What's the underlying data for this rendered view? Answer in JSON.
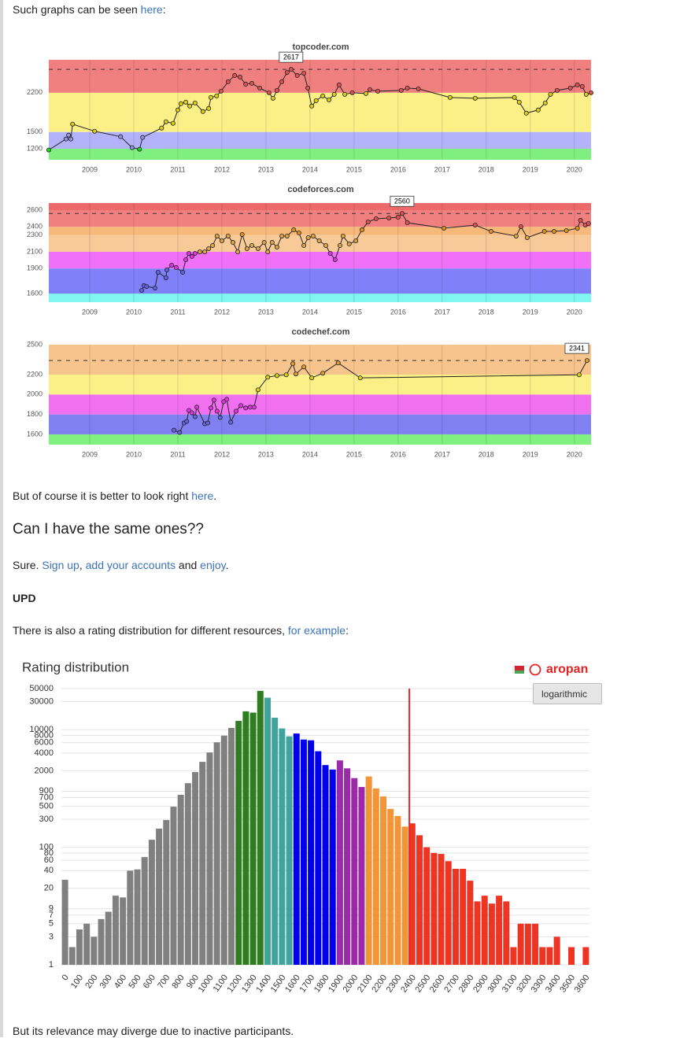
{
  "paragraphs": [
    [
      {
        "text": "Such graphs can be seen "
      },
      {
        "link": "here"
      },
      {
        "text": ":"
      }
    ],
    [
      {
        "text": "But of course it is better to look right "
      },
      {
        "link": "here"
      },
      {
        "text": "."
      }
    ],
    [
      {
        "heading": "Can I have the same ones??"
      }
    ],
    [
      {
        "text": "Sure. "
      },
      {
        "link": "Sign up"
      },
      {
        "text": ", "
      },
      {
        "link": "add your accounts"
      },
      {
        "text": " and "
      },
      {
        "link": "enjoy"
      },
      {
        "text": "."
      }
    ],
    [
      {
        "bold": "UPD"
      }
    ],
    [
      {
        "text": "There is also a rating distribution for different resources, "
      },
      {
        "link": "for example"
      },
      {
        "text": ":"
      }
    ],
    [
      {
        "text": "But its relevance may diverge due to inactive participants."
      }
    ]
  ],
  "chart_data": [
    {
      "type": "line",
      "title": "topcoder.com",
      "xlim": [
        2008.07,
        2020.38
      ],
      "xticks": [
        2009,
        2010,
        2011,
        2012,
        2013,
        2014,
        2015,
        2016,
        2017,
        2018,
        2019,
        2020
      ],
      "ylim": [
        1004,
        2788
      ],
      "yticks": [
        1200,
        1500,
        2200
      ],
      "bands": [
        {
          "to": 1200,
          "color": "#7fef7f"
        },
        {
          "from": 1200,
          "to": 1500,
          "color": "#b3b3fb"
        },
        {
          "from": 1500,
          "to": 2200,
          "color": "#fbef88"
        },
        {
          "from": 2200,
          "color": "#f08080"
        }
      ],
      "x": [
        2008.07,
        2008.46,
        2008.52,
        2008.57,
        2008.61,
        2009.11,
        2009.7,
        2009.96,
        2010.13,
        2010.2,
        2010.63,
        2010.73,
        2010.89,
        2011.0,
        2011.07,
        2011.18,
        2011.27,
        2011.39,
        2011.57,
        2011.7,
        2011.75,
        2011.88,
        2011.98,
        2012.14,
        2012.29,
        2012.41,
        2012.54,
        2012.68,
        2012.86,
        2013.07,
        2013.16,
        2013.25,
        2013.36,
        2013.48,
        2013.57,
        2013.71,
        2013.86,
        2013.95,
        2014.04,
        2014.14,
        2014.29,
        2014.43,
        2014.55,
        2014.66,
        2014.79,
        2014.96,
        2015.27,
        2015.36,
        2015.54,
        2016.07,
        2016.21,
        2016.46,
        2017.18,
        2017.75,
        2018.64,
        2018.75,
        2018.91,
        2019.18,
        2019.34,
        2019.46,
        2019.61,
        2019.91,
        2020.07,
        2020.18,
        2020.27,
        2020.38
      ],
      "values": [
        1178,
        1374,
        1444,
        1374,
        1640,
        1514,
        1416,
        1220,
        1192,
        1402,
        1570,
        1682,
        1654,
        1892,
        2004,
        2032,
        1962,
        2018,
        1864,
        1920,
        2116,
        2144,
        2228,
        2396,
        2508,
        2480,
        2354,
        2368,
        2284,
        2200,
        2102,
        2242,
        2396,
        2564,
        2617,
        2508,
        2550,
        2284,
        1962,
        2060,
        2144,
        2074,
        2172,
        2340,
        2172,
        2200,
        2186,
        2256,
        2228,
        2242,
        2284,
        2270,
        2116,
        2102,
        2116,
        2032,
        1836,
        1892,
        2018,
        2172,
        2242,
        2284,
        2340,
        2312,
        2172,
        2200
      ]
    },
    {
      "type": "line",
      "title": "codeforces.com",
      "xlim": [
        2008.07,
        2020.38
      ],
      "xticks": [
        2009,
        2010,
        2011,
        2012,
        2013,
        2014,
        2015,
        2016,
        2017,
        2018,
        2019,
        2020
      ],
      "ylim": [
        1496,
        2685
      ],
      "yticks": [
        1600,
        1900,
        2100,
        2300,
        2400,
        2600
      ],
      "bands": [
        {
          "to": 1600,
          "color": "#7ff7f0"
        },
        {
          "from": 1600,
          "to": 1900,
          "color": "#8080f8"
        },
        {
          "from": 1900,
          "to": 2100,
          "color": "#f070f8"
        },
        {
          "from": 2100,
          "to": 2300,
          "color": "#f7ca98"
        },
        {
          "from": 2300,
          "to": 2400,
          "color": "#f6b97a"
        },
        {
          "from": 2400,
          "to": 2600,
          "color": "#f08080"
        },
        {
          "from": 2600,
          "color": "#ec6a6a"
        }
      ],
      "x": [
        2010.18,
        2010.23,
        2010.29,
        2010.48,
        2010.55,
        2010.73,
        2010.75,
        2010.86,
        2010.96,
        2011.11,
        2011.18,
        2011.25,
        2011.32,
        2011.39,
        2011.5,
        2011.61,
        2011.7,
        2011.79,
        2011.89,
        2012.0,
        2012.14,
        2012.25,
        2012.36,
        2012.46,
        2012.57,
        2012.68,
        2012.82,
        2012.96,
        2013.04,
        2013.14,
        2013.25,
        2013.36,
        2013.48,
        2013.63,
        2013.75,
        2013.86,
        2013.96,
        2014.07,
        2014.21,
        2014.36,
        2014.46,
        2014.57,
        2014.68,
        2014.75,
        2014.89,
        2015.04,
        2015.18,
        2015.32,
        2015.5,
        2015.79,
        2016.0,
        2016.09,
        2016.21,
        2017.04,
        2017.75,
        2018.11,
        2018.68,
        2018.79,
        2018.93,
        2019.32,
        2019.54,
        2019.82,
        2020.07,
        2020.14,
        2020.25,
        2020.32
      ],
      "values": [
        1638,
        1695,
        1685,
        1666,
        1855,
        1789,
        1883,
        1940,
        1912,
        1855,
        2006,
        2081,
        2044,
        2081,
        2100,
        2100,
        2138,
        2176,
        2289,
        2232,
        2289,
        2213,
        2100,
        2308,
        2138,
        2176,
        2138,
        2213,
        2100,
        2213,
        2157,
        2289,
        2289,
        2364,
        2327,
        2176,
        2270,
        2289,
        2232,
        2176,
        2081,
        2006,
        2176,
        2289,
        2194,
        2232,
        2364,
        2459,
        2496,
        2506,
        2515,
        2560,
        2449,
        2383,
        2421,
        2345,
        2289,
        2402,
        2270,
        2345,
        2345,
        2355,
        2383,
        2477,
        2421,
        2440
      ]
    },
    {
      "type": "line",
      "title": "codechef.com",
      "xlim": [
        2008.07,
        2020.38
      ],
      "xticks": [
        2009,
        2010,
        2011,
        2012,
        2013,
        2014,
        2015,
        2016,
        2017,
        2018,
        2019,
        2020
      ],
      "ylim": [
        1497,
        2500
      ],
      "yticks": [
        1600,
        1800,
        2000,
        2200,
        2500
      ],
      "bands": [
        {
          "to": 1600,
          "color": "#80f080"
        },
        {
          "from": 1600,
          "to": 1800,
          "color": "#8080f0"
        },
        {
          "from": 1800,
          "to": 2000,
          "color": "#f070f0"
        },
        {
          "from": 2000,
          "to": 2200,
          "color": "#fbef88"
        },
        {
          "from": 2200,
          "color": "#f6c48c"
        }
      ],
      "x": [
        2010.91,
        2011.04,
        2011.14,
        2011.2,
        2011.25,
        2011.32,
        2011.39,
        2011.43,
        2011.61,
        2011.68,
        2011.75,
        2011.82,
        2011.89,
        2011.96,
        2012.04,
        2012.11,
        2012.2,
        2012.32,
        2012.43,
        2012.54,
        2012.64,
        2012.73,
        2012.82,
        2013.04,
        2013.25,
        2013.46,
        2013.61,
        2013.68,
        2013.86,
        2014.04,
        2014.29,
        2014.64,
        2015.14,
        2020.11,
        2020.29
      ],
      "values": [
        1642,
        1619,
        1714,
        1730,
        1841,
        1817,
        1777,
        1873,
        1706,
        1714,
        1865,
        1944,
        1833,
        1769,
        1928,
        1952,
        1722,
        1833,
        1889,
        1865,
        1873,
        1873,
        2047,
        2174,
        2190,
        2198,
        2309,
        2206,
        2277,
        2167,
        2214,
        2317,
        2167,
        2198,
        2341
      ]
    },
    {
      "type": "histogram",
      "title": "Rating distribution",
      "user": "aropan",
      "button": "logarithmic",
      "log": true,
      "grid": true,
      "bins": [
        0,
        50,
        100,
        150,
        200,
        250,
        300,
        350,
        400,
        450,
        500,
        550,
        600,
        650,
        700,
        750,
        800,
        850,
        900,
        950,
        1000,
        1050,
        1100,
        1150,
        1200,
        1250,
        1300,
        1350,
        1400,
        1450,
        1500,
        1550,
        1600,
        1650,
        1700,
        1750,
        1800,
        1850,
        1900,
        1950,
        2000,
        2050,
        2100,
        2150,
        2200,
        2250,
        2300,
        2350,
        2400,
        2450,
        2500,
        2550,
        2600,
        2650,
        2700,
        2750,
        2800,
        2850,
        2900,
        2950,
        3000,
        3050,
        3100,
        3150,
        3200,
        3250,
        3300,
        3350,
        3400,
        3450,
        3500,
        3550,
        3600,
        3650
      ],
      "values": [
        28,
        2,
        4,
        5,
        3,
        6,
        8,
        15,
        14,
        40,
        42,
        68,
        134,
        207,
        290,
        490,
        780,
        1230,
        1900,
        2840,
        4100,
        6100,
        7900,
        10700,
        14100,
        20500,
        19500,
        45700,
        35000,
        16000,
        10500,
        7700,
        8600,
        6800,
        6600,
        4300,
        2500,
        2100,
        3000,
        2200,
        1500,
        1060,
        1600,
        1000,
        730,
        450,
        340,
        225,
        255,
        160,
        100,
        80,
        77,
        58,
        43,
        43,
        27,
        12,
        15,
        11,
        15,
        12,
        2,
        5,
        5,
        5,
        2,
        2,
        3,
        null,
        2,
        null,
        2
      ],
      "bands": [
        {
          "from": 0,
          "color": "#808080"
        },
        {
          "from": 1200,
          "color": "#2e7d1e"
        },
        {
          "from": 1400,
          "color": "#40a49c"
        },
        {
          "from": 1600,
          "color": "#0000ee"
        },
        {
          "from": 1900,
          "color": "#9a2aa8"
        },
        {
          "from": 2100,
          "color": "#f39436"
        },
        {
          "from": 2400,
          "color": "#ee3524"
        }
      ],
      "marker": 2405,
      "marker_color": "#ee2222",
      "xlim": [
        0,
        3650
      ],
      "xticks": [
        0,
        100,
        200,
        300,
        400,
        500,
        600,
        700,
        800,
        900,
        1000,
        1100,
        1200,
        1300,
        1400,
        1500,
        1600,
        1700,
        1800,
        1900,
        2000,
        2100,
        2200,
        2300,
        2400,
        2500,
        2600,
        2700,
        2800,
        2900,
        3000,
        3100,
        3200,
        3300,
        3400,
        3500,
        3600
      ],
      "ylim": [
        1,
        50000
      ],
      "yticks": [
        1,
        3,
        5,
        7,
        9,
        20,
        40,
        60,
        80,
        100,
        300,
        500,
        700,
        900,
        2000,
        4000,
        6000,
        8000,
        10000,
        30000,
        50000
      ]
    }
  ]
}
